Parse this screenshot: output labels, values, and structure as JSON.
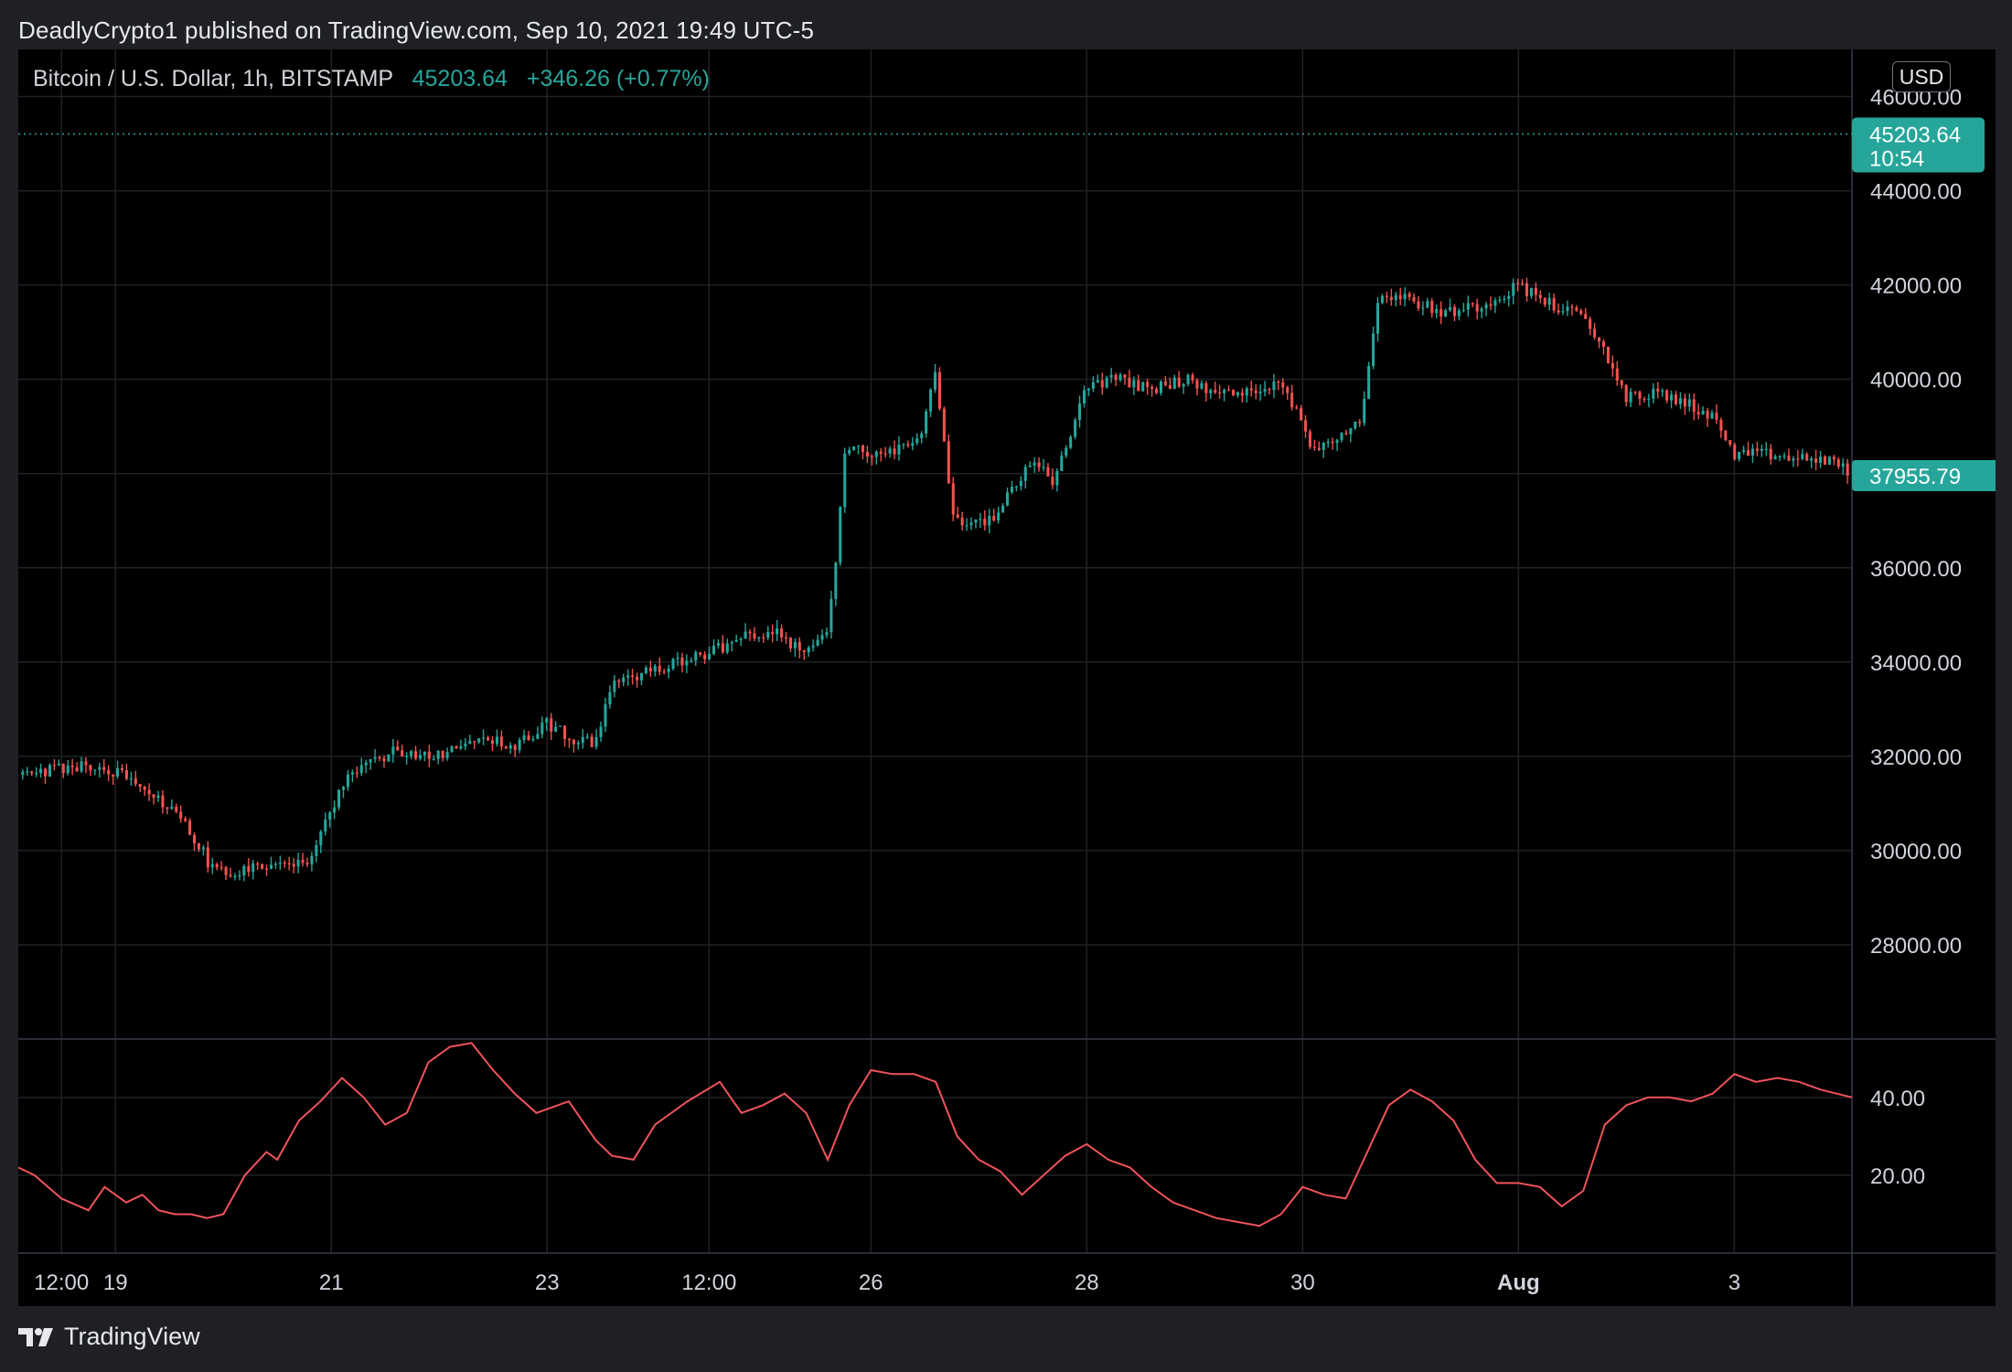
{
  "header": {
    "published_line": "DeadlyCrypto1 published on TradingView.com, Sep 10, 2021 19:49 UTC-5"
  },
  "legend": {
    "symbol": "Bitcoin / U.S. Dollar, 1h, BITSTAMP",
    "last_price": "45203.64",
    "change": "+346.26 (+0.77%)"
  },
  "currency": "USD",
  "price_tag": {
    "price": "45203.64",
    "countdown": "10:54"
  },
  "last_close_tag": "37955.79",
  "footer": {
    "brand": "TradingView"
  },
  "colors": {
    "up": "#26a69a",
    "down": "#ef5350",
    "indicator": "#f0535b",
    "grid": "#1f2226",
    "axis_text": "#d1d4dc",
    "background": "#000000"
  },
  "chart_data": [
    {
      "type": "candlestick",
      "interval": "1h",
      "y_axis": {
        "ticks": [
          "28000.00",
          "30000.00",
          "32000.00",
          "34000.00",
          "36000.00",
          "38000.00",
          "40000.00",
          "42000.00",
          "44000.00",
          "46000.00"
        ],
        "tick_values": [
          28000,
          30000,
          32000,
          34000,
          36000,
          38000,
          40000,
          42000,
          44000,
          46000
        ],
        "range": [
          26000,
          47000
        ]
      },
      "x_axis": {
        "labels": [
          "12:00",
          "19",
          "21",
          "23",
          "12:00",
          "26",
          "28",
          "30",
          "Aug",
          "3"
        ],
        "label_days": [
          18.5,
          19,
          21,
          23,
          24.5,
          26,
          28,
          30,
          32,
          34
        ],
        "range_days": [
          18.1,
          35.09
        ]
      },
      "grid": true,
      "current_price_line": 45203.64,
      "price_path": {
        "days": [
          18.1,
          18.6,
          18.9,
          19.1,
          19.3,
          19.6,
          19.9,
          20.1,
          20.4,
          20.6,
          20.8,
          20.95,
          21.1,
          21.35,
          21.55,
          21.8,
          22.1,
          22.4,
          22.7,
          23.0,
          23.2,
          23.45,
          23.6,
          24.1,
          24.5,
          24.8,
          25.1,
          25.35,
          25.6,
          25.7,
          25.75,
          25.8,
          26.1,
          26.45,
          26.6,
          26.75,
          26.9,
          27.1,
          27.5,
          27.7,
          28.0,
          28.3,
          28.6,
          28.9,
          29.2,
          29.5,
          29.8,
          30.1,
          30.4,
          30.55,
          30.7,
          31.0,
          31.3,
          31.7,
          32.0,
          32.3,
          32.6,
          32.8,
          33.0,
          33.3,
          33.55,
          33.8,
          34.0,
          34.3,
          34.6,
          34.9,
          35.09
        ],
        "closes": [
          31600,
          31800,
          31700,
          31600,
          31200,
          30800,
          29600,
          29500,
          29700,
          29700,
          29800,
          30600,
          31400,
          31800,
          32100,
          32000,
          32100,
          32400,
          32200,
          32700,
          32400,
          32300,
          33600,
          33900,
          34200,
          34500,
          34700,
          34200,
          34600,
          36800,
          38300,
          38500,
          38400,
          38800,
          40100,
          37200,
          36900,
          37000,
          38300,
          37800,
          39900,
          40000,
          39800,
          40000,
          39700,
          39700,
          40000,
          38500,
          38900,
          39200,
          41800,
          41700,
          41400,
          41600,
          42000,
          41600,
          41300,
          40600,
          39600,
          39700,
          39500,
          39200,
          38400,
          38400,
          38300,
          38300,
          37956
        ]
      },
      "last_close": 37955.79
    },
    {
      "type": "line",
      "y_axis": {
        "ticks": [
          "20.00",
          "40.00"
        ],
        "tick_values": [
          20,
          40
        ],
        "range": [
          0,
          55
        ]
      },
      "x": [
        18.1,
        18.25,
        18.5,
        18.75,
        18.9,
        19.1,
        19.25,
        19.4,
        19.55,
        19.7,
        19.85,
        20.0,
        20.2,
        20.4,
        20.5,
        20.7,
        20.9,
        21.1,
        21.3,
        21.5,
        21.7,
        21.9,
        22.1,
        22.3,
        22.5,
        22.7,
        22.9,
        23.0,
        23.2,
        23.45,
        23.6,
        23.8,
        24.0,
        24.3,
        24.6,
        24.8,
        25.0,
        25.2,
        25.4,
        25.6,
        25.8,
        26.0,
        26.2,
        26.4,
        26.6,
        26.8,
        27.0,
        27.2,
        27.4,
        27.6,
        27.8,
        28.0,
        28.2,
        28.4,
        28.6,
        28.8,
        29.0,
        29.2,
        29.4,
        29.6,
        29.8,
        30.0,
        30.2,
        30.4,
        30.6,
        30.8,
        31.0,
        31.2,
        31.4,
        31.6,
        31.8,
        32.0,
        32.2,
        32.4,
        32.6,
        32.8,
        33.0,
        33.2,
        33.4,
        33.6,
        33.8,
        34.0,
        34.2,
        34.4,
        34.6,
        34.8,
        35.09
      ],
      "values": [
        22,
        20,
        14,
        11,
        17,
        13,
        15,
        11,
        10,
        10,
        9,
        10,
        20,
        26,
        24,
        34,
        39,
        45,
        40,
        33,
        36,
        49,
        53,
        54,
        47,
        41,
        36,
        37,
        39,
        29,
        25,
        24,
        33,
        39,
        44,
        36,
        38,
        41,
        36,
        24,
        38,
        47,
        46,
        46,
        44,
        30,
        24,
        21,
        15,
        20,
        25,
        28,
        24,
        22,
        17,
        13,
        11,
        9,
        8,
        7,
        10,
        17,
        15,
        14,
        26,
        38,
        42,
        39,
        34,
        24,
        18,
        18,
        17,
        12,
        16,
        33,
        38,
        40,
        40,
        39,
        41,
        46,
        44,
        45,
        44,
        42,
        40
      ]
    }
  ]
}
